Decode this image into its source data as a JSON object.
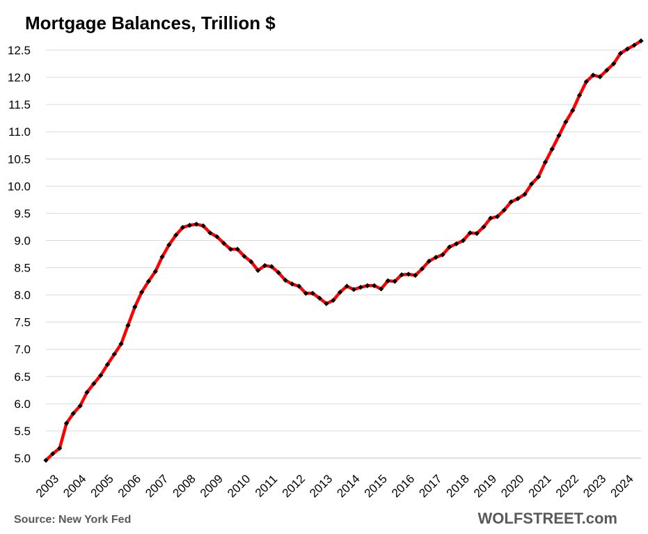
{
  "chart_data": {
    "type": "line",
    "title": "Mortgage Balances, Trillion $",
    "source": "Source: New York Fed",
    "brand": "WOLFSTREET.com",
    "ylim": [
      5.0,
      12.5
    ],
    "yticks": [
      "5.0",
      "5.5",
      "6.0",
      "6.5",
      "7.0",
      "7.5",
      "8.0",
      "8.5",
      "9.0",
      "9.5",
      "10.0",
      "10.5",
      "11.0",
      "11.5",
      "12.0",
      "12.5"
    ],
    "xticks": [
      "2003",
      "2004",
      "2005",
      "2006",
      "2007",
      "2008",
      "2009",
      "2010",
      "2011",
      "2012",
      "2013",
      "2014",
      "2015",
      "2016",
      "2017",
      "2018",
      "2019",
      "2020",
      "2021",
      "2022",
      "2023",
      "2024"
    ],
    "xlim": [
      2003.0,
      2024.75
    ],
    "grid": true,
    "legend": "none",
    "series": [
      {
        "name": "Mortgage balances (trillion $)",
        "line_color": "#ff0000",
        "marker_color": "#000000",
        "x": [
          2003.0,
          2003.25,
          2003.5,
          2003.75,
          2004.0,
          2004.25,
          2004.5,
          2004.75,
          2005.0,
          2005.25,
          2005.5,
          2005.75,
          2006.0,
          2006.25,
          2006.5,
          2006.75,
          2007.0,
          2007.25,
          2007.5,
          2007.75,
          2008.0,
          2008.25,
          2008.5,
          2008.75,
          2009.0,
          2009.25,
          2009.5,
          2009.75,
          2010.0,
          2010.25,
          2010.5,
          2010.75,
          2011.0,
          2011.25,
          2011.5,
          2011.75,
          2012.0,
          2012.25,
          2012.5,
          2012.75,
          2013.0,
          2013.25,
          2013.5,
          2013.75,
          2014.0,
          2014.25,
          2014.5,
          2014.75,
          2015.0,
          2015.25,
          2015.5,
          2015.75,
          2016.0,
          2016.25,
          2016.5,
          2016.75,
          2017.0,
          2017.25,
          2017.5,
          2017.75,
          2018.0,
          2018.25,
          2018.5,
          2018.75,
          2019.0,
          2019.25,
          2019.5,
          2019.75,
          2020.0,
          2020.25,
          2020.5,
          2020.75,
          2021.0,
          2021.25,
          2021.5,
          2021.75,
          2022.0,
          2022.25,
          2022.5,
          2022.75,
          2023.0,
          2023.25,
          2023.5,
          2023.75,
          2024.0,
          2024.25,
          2024.5,
          2024.75
        ],
        "values": [
          4.96,
          5.08,
          5.18,
          5.64,
          5.82,
          5.96,
          6.21,
          6.37,
          6.52,
          6.72,
          6.91,
          7.1,
          7.44,
          7.78,
          8.05,
          8.25,
          8.43,
          8.7,
          8.92,
          9.1,
          9.24,
          9.28,
          9.3,
          9.27,
          9.14,
          9.07,
          8.95,
          8.84,
          8.84,
          8.71,
          8.61,
          8.45,
          8.54,
          8.52,
          8.41,
          8.27,
          8.2,
          8.16,
          8.03,
          8.03,
          7.94,
          7.84,
          7.9,
          8.05,
          8.16,
          8.1,
          8.14,
          8.17,
          8.17,
          8.11,
          8.26,
          8.25,
          8.37,
          8.38,
          8.36,
          8.48,
          8.62,
          8.69,
          8.74,
          8.88,
          8.94,
          9.0,
          9.14,
          9.13,
          9.25,
          9.41,
          9.44,
          9.56,
          9.71,
          9.77,
          9.85,
          10.04,
          10.17,
          10.44,
          10.68,
          10.93,
          11.18,
          11.39,
          11.67,
          11.92,
          12.04,
          12.01,
          12.13,
          12.25,
          12.44,
          12.52,
          12.59,
          12.67
        ]
      }
    ]
  }
}
